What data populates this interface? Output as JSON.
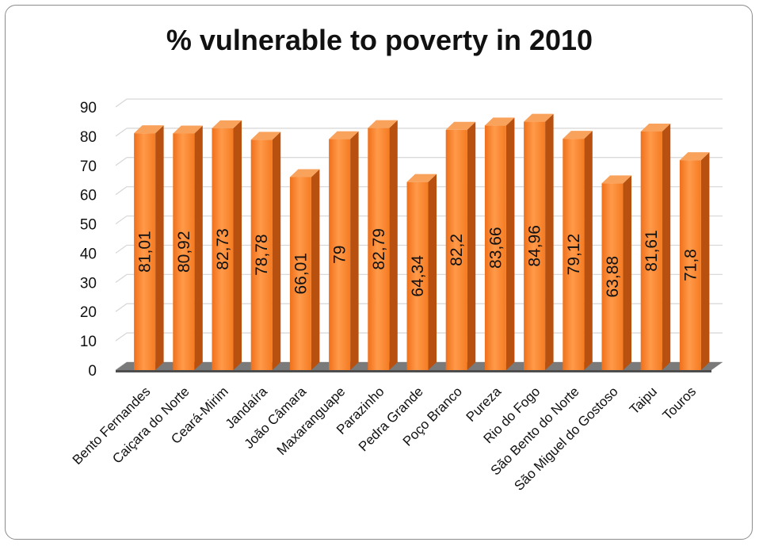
{
  "chart_data": {
    "type": "bar",
    "title": "% vulnerable to poverty in 2010",
    "xlabel": "",
    "ylabel": "",
    "ylim": [
      0,
      90
    ],
    "yticks": [
      0,
      10,
      20,
      30,
      40,
      50,
      60,
      70,
      80,
      90
    ],
    "grid": true,
    "legend": "none",
    "bar_color": "#f47a21",
    "categories": [
      "Bento Fernandes",
      "Caiçara do Norte",
      "Ceará-Mirim",
      "Jandaíra",
      "João Câmara",
      "Maxaranguape",
      "Parazinho",
      "Pedra Grande",
      "Poço Branco",
      "Pureza",
      "Rio do Fogo",
      "São Bento do Norte",
      "São Miguel do Gostoso",
      "Taipu",
      "Touros"
    ],
    "values": [
      81.01,
      80.92,
      82.73,
      78.78,
      66.01,
      79,
      82.79,
      64.34,
      82.2,
      83.66,
      84.96,
      79.12,
      63.88,
      81.61,
      71.8
    ],
    "data_labels": [
      "81,01",
      "80,92",
      "82,73",
      "78,78",
      "66,01",
      "79",
      "82,79",
      "64,34",
      "82,2",
      "83,66",
      "84,96",
      "79,12",
      "63,88",
      "81,61",
      "71,8"
    ]
  }
}
